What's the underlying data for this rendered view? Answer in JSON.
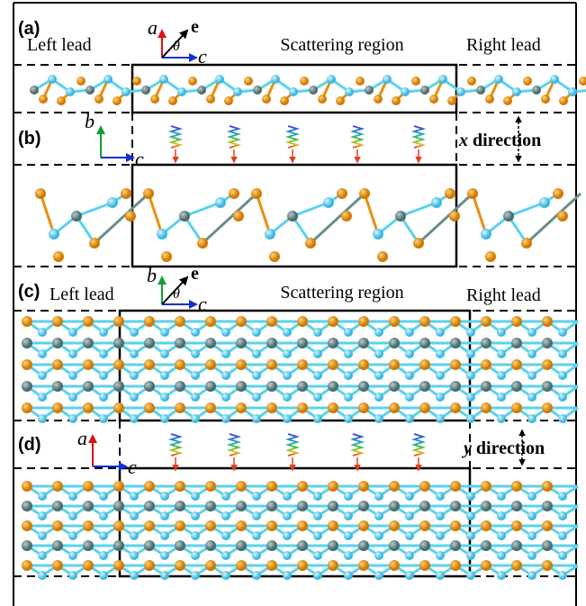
{
  "panels": [
    {
      "label": "(a)",
      "left_lead": "Left lead",
      "scattering_region": "Scattering region",
      "right_lead": "Right lead",
      "axes": {
        "vertical": "a",
        "field": "e",
        "angle": "θ",
        "horizontal": "c"
      }
    },
    {
      "label": "(b)",
      "axes": {
        "vertical": "b",
        "horizontal": "c"
      },
      "direction_axis": "x",
      "direction_word": "direction"
    },
    {
      "label": "(c)",
      "left_lead": "Left lead",
      "scattering_region": "Scattering region",
      "right_lead": "Right lead",
      "axes": {
        "vertical": "b",
        "field": "e",
        "angle": "θ",
        "horizontal": "c"
      }
    },
    {
      "label": "(d)",
      "axes": {
        "vertical": "a",
        "horizontal": "c"
      },
      "direction_axis": "y",
      "direction_word": "direction"
    }
  ]
}
